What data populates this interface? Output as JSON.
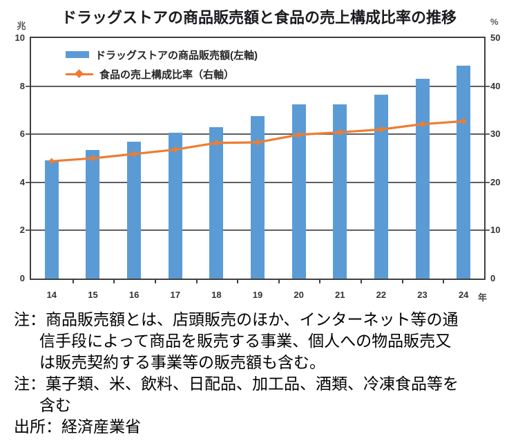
{
  "chart_data": {
    "type": "bar",
    "title": "ドラッグストアの商品販売額と食品の売上構成比率の推移",
    "categories": [
      "14",
      "15",
      "16",
      "17",
      "18",
      "19",
      "20",
      "21",
      "22",
      "23",
      "24"
    ],
    "x_unit": "年",
    "series": [
      {
        "name": "ドラッグストアの商品販売額(左軸)",
        "type": "bar",
        "axis": "left",
        "color": "#5B9BD5",
        "values": [
          4.9,
          5.35,
          5.7,
          6.05,
          6.3,
          6.75,
          7.25,
          7.25,
          7.65,
          8.3,
          8.85
        ]
      },
      {
        "name": "食品の売上構成比率（右軸）",
        "type": "line",
        "axis": "right",
        "color": "#ED7D31",
        "values": [
          24.4,
          25.0,
          25.9,
          26.8,
          28.2,
          28.3,
          29.9,
          30.4,
          31.0,
          32.1,
          32.7
        ]
      }
    ],
    "left_axis": {
      "unit": "兆",
      "min": 0,
      "max": 10,
      "ticks": [
        10,
        8,
        6,
        4,
        2,
        0
      ]
    },
    "right_axis": {
      "unit": "%",
      "min": 0,
      "max": 50,
      "ticks": [
        50,
        40,
        30,
        20,
        10,
        0
      ]
    },
    "grid": true,
    "legend_position": "top-left-inside"
  },
  "notes": {
    "lines": [
      {
        "text": "注：商品販売額とは、店頭販売のほか、インターネット等の通",
        "indent": false
      },
      {
        "text": "信手段によって商品を販売する事業、個人への物品販売又",
        "indent": true
      },
      {
        "text": "は販売契約する事業等の販売額も含む。",
        "indent": true
      },
      {
        "text": "注：菓子類、米、飲料、日配品、加工品、酒類、冷凍食品等を",
        "indent": false
      },
      {
        "text": "含む",
        "indent": true
      },
      {
        "text": "出所：経済産業省",
        "indent": false
      }
    ]
  },
  "colors": {
    "grid": "#5e5e5e",
    "plot_border": "#3f3f3f",
    "axis_text": "#333333",
    "title_text": "#1a1a1f"
  }
}
